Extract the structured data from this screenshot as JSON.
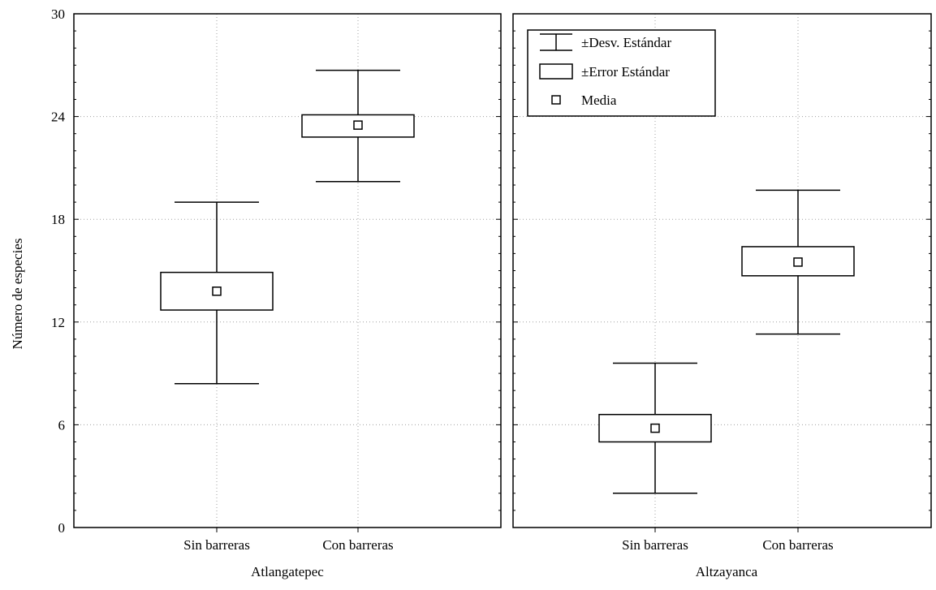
{
  "chart_data": {
    "type": "box",
    "ylabel": "Número de especies",
    "ylim": [
      0,
      30
    ],
    "yticks": [
      "0",
      "6",
      "12",
      "18",
      "24",
      "30"
    ],
    "grid": true,
    "legend": {
      "placement": "top-left of right panel",
      "entries": [
        {
          "symbol": "whisker",
          "label": "±Desv. Estándar"
        },
        {
          "symbol": "box",
          "label": "±Error Estándar"
        },
        {
          "symbol": "point",
          "label": "Media"
        }
      ]
    },
    "panels": [
      {
        "label": "Atlangatepec",
        "groups": [
          {
            "category": "Sin barreras",
            "mean": 13.8,
            "se_low": 12.7,
            "se_high": 14.9,
            "sd_low": 8.4,
            "sd_high": 19.0
          },
          {
            "category": "Con barreras",
            "mean": 23.5,
            "se_low": 22.8,
            "se_high": 24.1,
            "sd_low": 20.2,
            "sd_high": 26.7
          }
        ]
      },
      {
        "label": "Altzayanca",
        "groups": [
          {
            "category": "Sin barreras",
            "mean": 5.8,
            "se_low": 5.0,
            "se_high": 6.6,
            "sd_low": 2.0,
            "sd_high": 9.6
          },
          {
            "category": "Con barreras",
            "mean": 15.5,
            "se_low": 14.7,
            "se_high": 16.4,
            "sd_low": 11.3,
            "sd_high": 19.7
          }
        ]
      }
    ]
  }
}
